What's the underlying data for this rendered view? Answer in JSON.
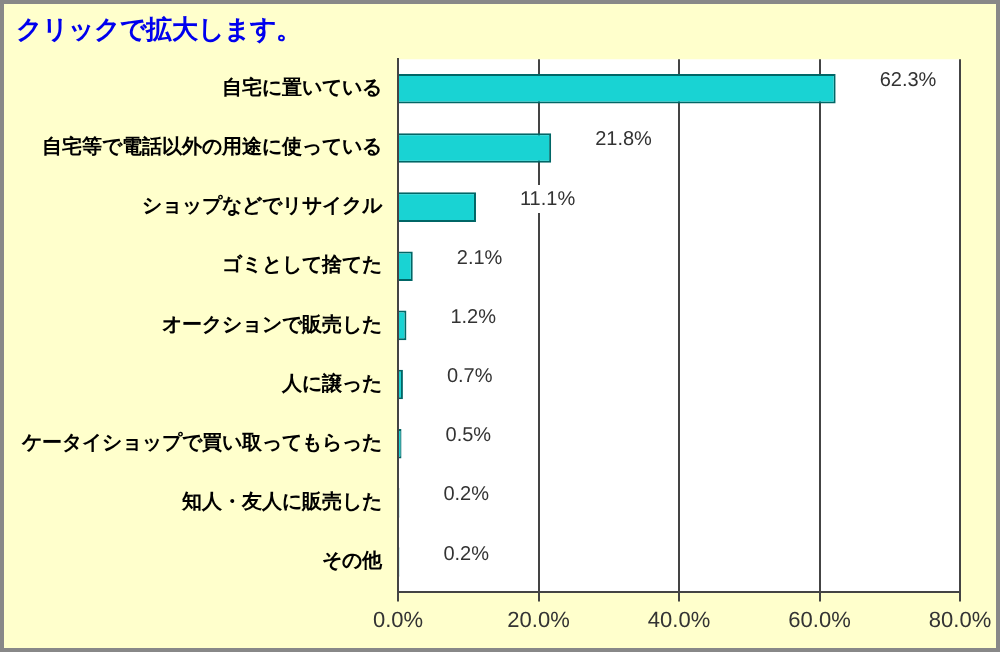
{
  "chart_data": {
    "type": "bar",
    "orientation": "horizontal",
    "title": "クリックで拡大します。",
    "categories": [
      "自宅に置いている",
      "自宅等で電話以外の用途に使っている",
      "ショップなどでリサイクル",
      "ゴミとして捨てた",
      "オークションで販売した",
      "人に譲った",
      "ケータイショップで買い取ってもらった",
      "知人・友人に販売した",
      "その他"
    ],
    "values": [
      62.3,
      21.8,
      11.1,
      2.1,
      1.2,
      0.7,
      0.5,
      0.2,
      0.2
    ],
    "value_labels": [
      "62.3%",
      "21.8%",
      "11.1%",
      "2.1%",
      "1.2%",
      "0.7%",
      "0.5%",
      "0.2%",
      "0.2%"
    ],
    "color": "#19d3d3",
    "xlim": [
      0,
      80
    ],
    "xticks": [
      {
        "value": 0,
        "label": "0.0%"
      },
      {
        "value": 20,
        "label": "20.0%"
      },
      {
        "value": 40,
        "label": "40.0%"
      },
      {
        "value": 60,
        "label": "60.0%"
      },
      {
        "value": 80,
        "label": "80.0%"
      }
    ],
    "grid": "x",
    "legend": false
  }
}
